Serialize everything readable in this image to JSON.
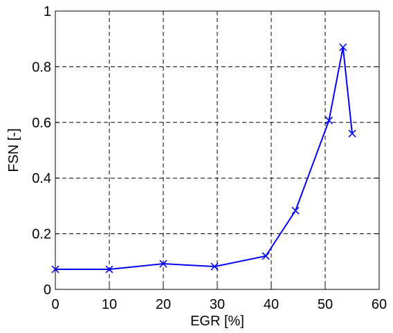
{
  "chart_data": {
    "type": "line",
    "xlabel": "EGR [%]",
    "ylabel": "FSN [-]",
    "xlim": [
      0,
      60
    ],
    "ylim": [
      0,
      1
    ],
    "xticks": [
      0,
      10,
      20,
      30,
      40,
      50,
      60
    ],
    "yticks": [
      0,
      0.2,
      0.4,
      0.6,
      0.8,
      1
    ],
    "xtick_labels": [
      "0",
      "10",
      "20",
      "30",
      "40",
      "50",
      "60"
    ],
    "ytick_labels": [
      "0",
      "0.2",
      "0.4",
      "0.6",
      "0.8",
      "1"
    ],
    "grid": true,
    "grid_style": "dashed",
    "marker": "x",
    "colors": {
      "series": "#0000ff",
      "axes": "#000000",
      "grid": "#000000"
    },
    "series": [
      {
        "x": [
          0,
          10,
          20,
          29.5,
          39,
          44.5,
          50.7,
          53.3,
          55
        ],
        "y": [
          0.072,
          0.072,
          0.092,
          0.082,
          0.12,
          0.283,
          0.607,
          0.87,
          0.56
        ]
      }
    ]
  }
}
